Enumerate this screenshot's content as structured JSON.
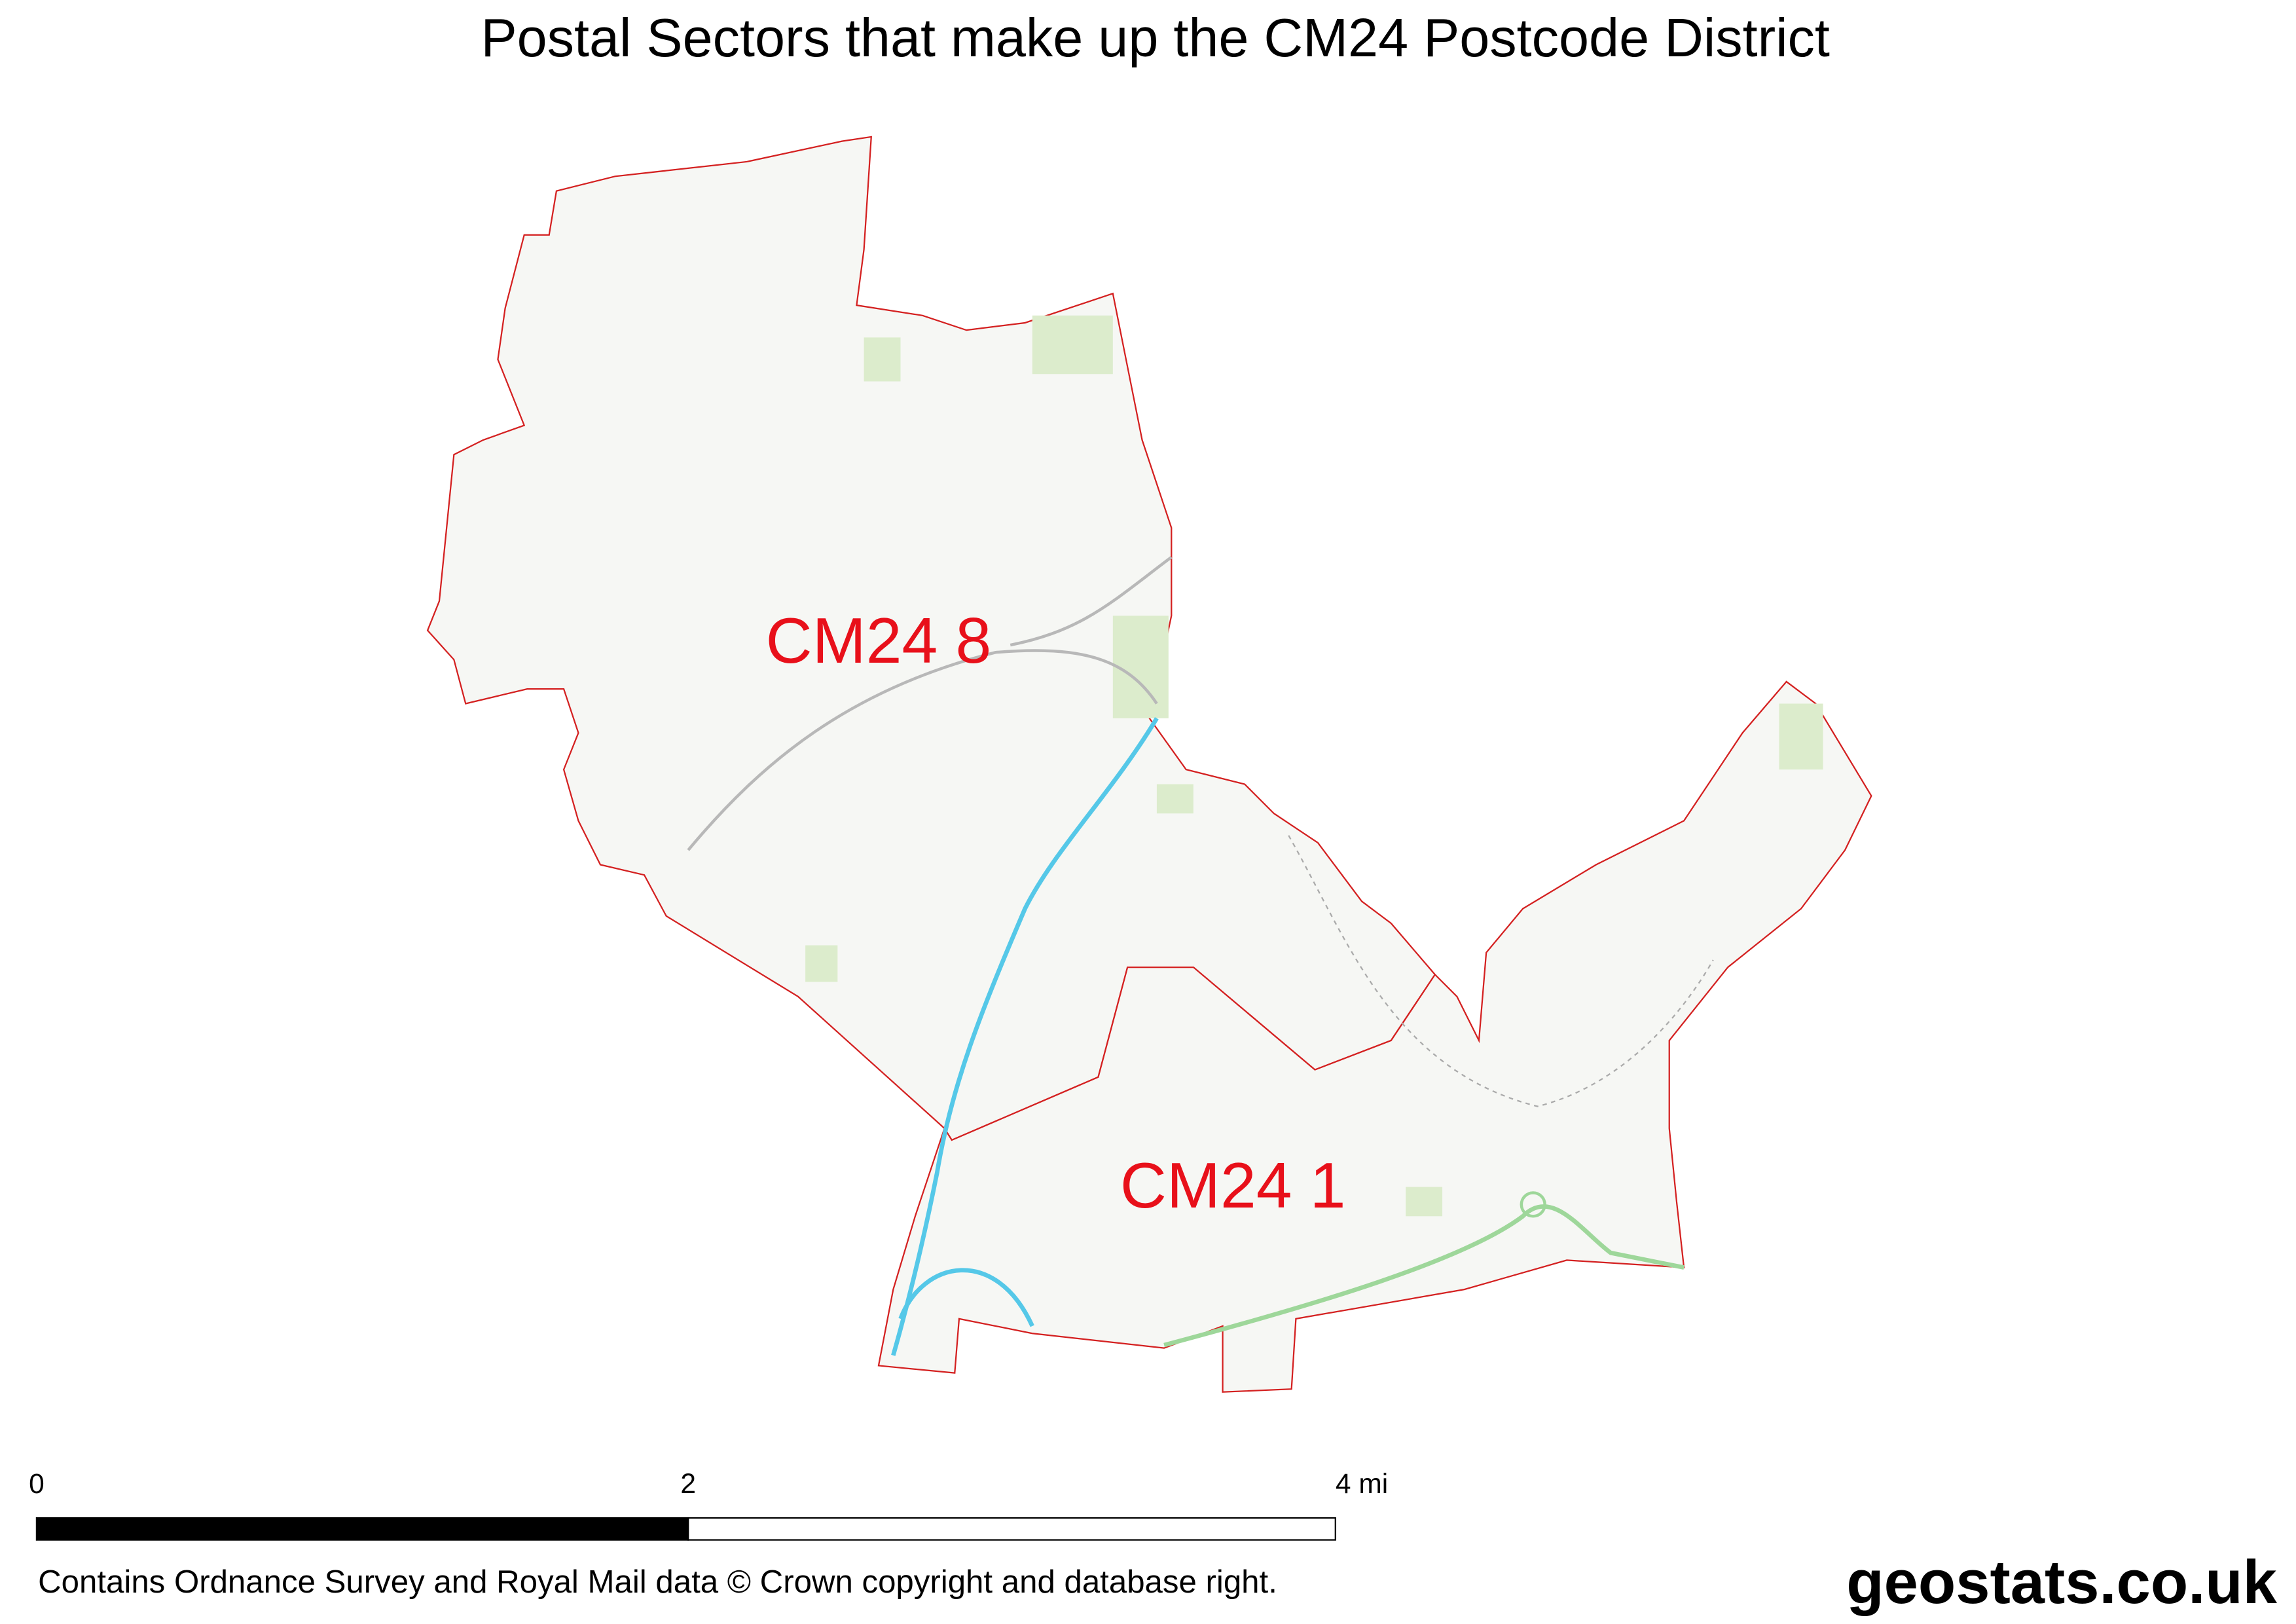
{
  "header": {
    "title": "Postal Sectors that make up the CM24 Postcode District"
  },
  "map": {
    "sectors": [
      {
        "label": "CM24 8"
      },
      {
        "label": "CM24 1"
      }
    ]
  },
  "scale_bar": {
    "labels": [
      "0",
      "2",
      "4 mi"
    ]
  },
  "footer": {
    "attribution": "Contains Ordnance Survey and Royal Mail data © Crown copyright and database right.",
    "brand": "geostats.co.uk"
  }
}
